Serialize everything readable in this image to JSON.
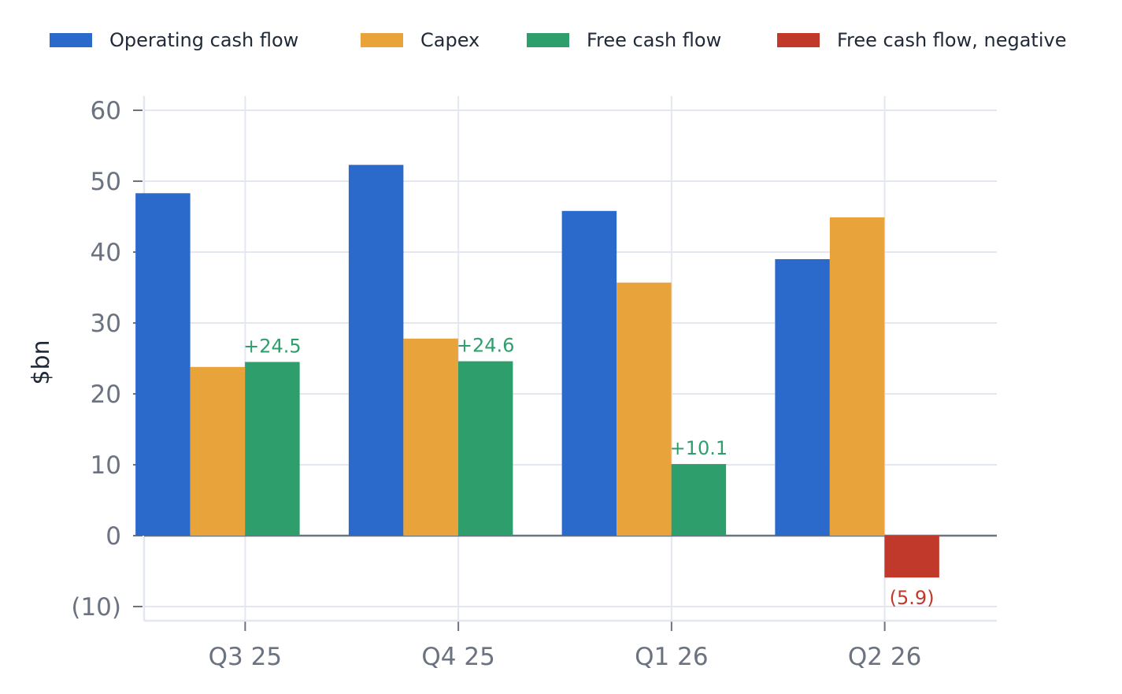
{
  "chart_data": {
    "type": "bar",
    "categories": [
      "Q3 25",
      "Q4 25",
      "Q1 26",
      "Q2 26"
    ],
    "series": [
      {
        "name": "Operating cash flow",
        "color": "#2b6acb",
        "values": [
          48.3,
          52.3,
          45.8,
          39.0
        ]
      },
      {
        "name": "Capex",
        "color": "#e8a33b",
        "values": [
          23.8,
          27.8,
          35.7,
          44.9
        ]
      },
      {
        "name": "Free cash flow",
        "color": "#2e9f6c",
        "values": [
          24.5,
          24.6,
          10.1,
          null
        ]
      },
      {
        "name": "Free cash flow, negative",
        "color": "#c0392b",
        "values": [
          null,
          null,
          null,
          -5.9
        ]
      }
    ],
    "data_labels": [
      {
        "category": "Q3 25",
        "series": "Free cash flow",
        "value": 24.5,
        "text": "+24.5",
        "color": "#2e9f6c"
      },
      {
        "category": "Q4 25",
        "series": "Free cash flow",
        "value": 24.6,
        "text": "+24.6",
        "color": "#2e9f6c"
      },
      {
        "category": "Q1 26",
        "series": "Free cash flow",
        "value": 10.1,
        "text": "+10.1",
        "color": "#2e9f6c"
      },
      {
        "category": "Q2 26",
        "series": "Free cash flow, negative",
        "value": -5.9,
        "text": "(5.9)",
        "color": "#c0392b"
      }
    ],
    "ylabel": "$bn",
    "xlabel": "",
    "title": "",
    "ylim": [
      -12,
      62
    ],
    "yticks": [
      {
        "value": 60,
        "label": "60"
      },
      {
        "value": 50,
        "label": "50"
      },
      {
        "value": 40,
        "label": "40"
      },
      {
        "value": 30,
        "label": "30"
      },
      {
        "value": 20,
        "label": "20"
      },
      {
        "value": 10,
        "label": "10"
      },
      {
        "value": 0,
        "label": "0"
      },
      {
        "value": -10,
        "label": "(10)"
      }
    ],
    "grid": true,
    "legend_position": "top"
  }
}
